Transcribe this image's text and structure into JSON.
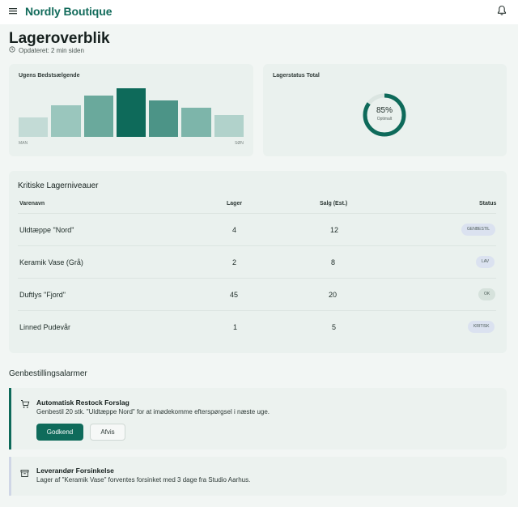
{
  "header": {
    "brand": "Nordly Boutique",
    "menu_icon": "menu-icon",
    "notification_icon": "bell-icon"
  },
  "page": {
    "title": "Lageroverblik",
    "updated": "Opdateret: 2 min siden"
  },
  "bestsellers": {
    "title": "Ugens Bedstsælgende",
    "start_label": "MAN",
    "end_label": "SØN",
    "chart_data": {
      "type": "bar",
      "title": "Ugens Bedstsælgende",
      "categories": [
        "MAN",
        "",
        "",
        "",
        "",
        "",
        "SØN"
      ],
      "values": [
        40,
        65,
        85,
        100,
        75,
        60,
        45
      ],
      "ylim": [
        0,
        100
      ],
      "grid": false,
      "colors": [
        "#c3dbd6",
        "#9ac6bd",
        "#6aa99c",
        "#0e6a5a",
        "#4c9487",
        "#7db5aa",
        "#b1d2cb"
      ]
    }
  },
  "stock_status": {
    "title": "Lagerstatus Total",
    "percent_label": "85%",
    "percent_value": 85,
    "sub_label": "Optimalt",
    "color": "#0e6a5a",
    "track_color": "#dbe5e1"
  },
  "critical": {
    "title": "Kritiske Lagerniveauer",
    "columns": [
      "Varenavn",
      "Lager",
      "Salg (Est.)",
      "Status"
    ],
    "rows": [
      {
        "name": "Uldtæppe \"Nord\"",
        "stock": "4",
        "sales": "12",
        "status": "GENBESTIL"
      },
      {
        "name": "Keramik Vase (Grå)",
        "stock": "2",
        "sales": "8",
        "status": "LAV"
      },
      {
        "name": "Duftlys \"Fjord\"",
        "stock": "45",
        "sales": "20",
        "status": "OK"
      },
      {
        "name": "Linned Pudevår",
        "stock": "1",
        "sales": "5",
        "status": "KRITISK"
      }
    ]
  },
  "alarms": {
    "title": "Genbestillingsalarmer",
    "items": [
      {
        "icon": "cart-icon",
        "title": "Automatisk Restock Forslag",
        "text": "Genbestil 20 stk. \"Uldtæppe Nord\" for at imødekomme efterspørgsel i næste uge.",
        "approve": "Godkend",
        "reject": "Afvis",
        "accent": "#0e6a5a"
      },
      {
        "icon": "archive-icon",
        "title": "Leverandør Forsinkelse",
        "text": "Lager af \"Keramik Vase\" forventes forsinket med 3 dage fra Studio Aarhus.",
        "accent": "#cfd6e6"
      }
    ]
  }
}
